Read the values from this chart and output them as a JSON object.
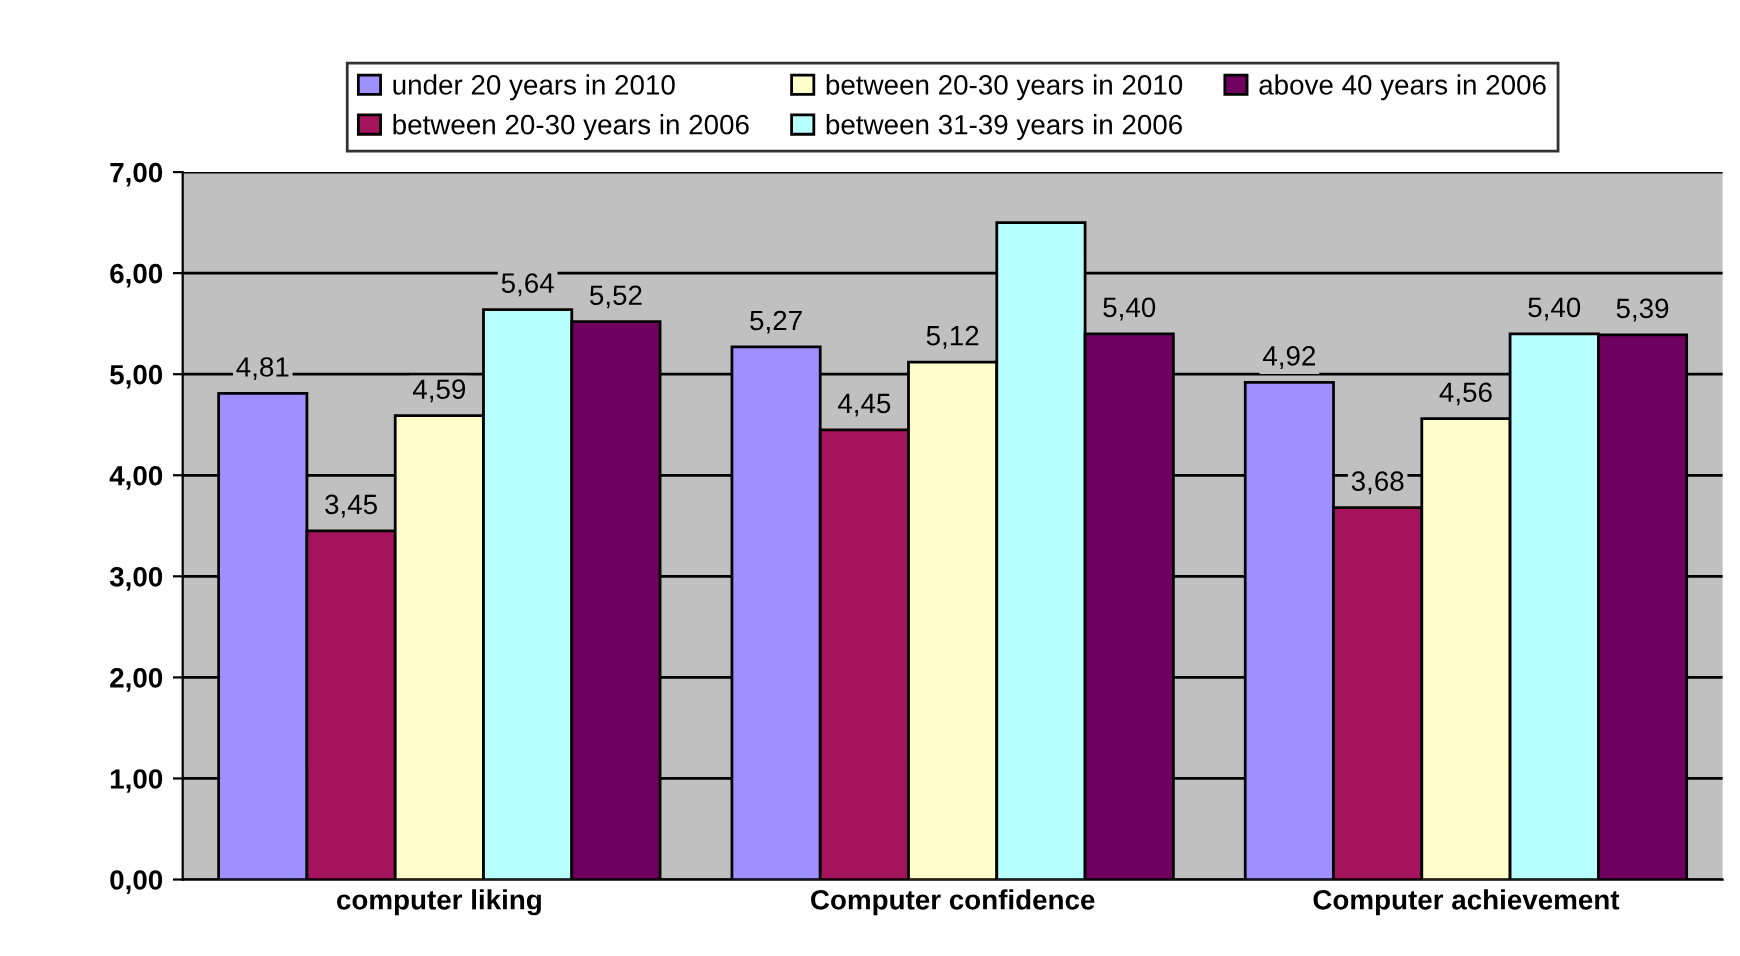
{
  "chart_data": {
    "type": "bar",
    "categories": [
      "computer liking",
      "Computer confidence",
      "Computer achievement"
    ],
    "series": [
      {
        "name": "under 20 years in 2010",
        "color": "#a090ff",
        "values": [
          4.81,
          5.27,
          4.92
        ],
        "value_labels": [
          "4,81",
          "5,27",
          "4,92"
        ]
      },
      {
        "name": "between 20-30 years in 2006",
        "color": "#a3145c",
        "values": [
          3.45,
          4.45,
          3.68
        ],
        "value_labels": [
          "3,45",
          "4,45",
          "3,68"
        ]
      },
      {
        "name": "between 20-30 years in 2010",
        "color": "#ffffcc",
        "values": [
          4.59,
          5.12,
          4.56
        ],
        "value_labels": [
          "4,59",
          "5,12",
          "4,56"
        ]
      },
      {
        "name": "between 31-39 years in 2006",
        "color": "#b8ffff",
        "values": [
          5.64,
          6.5,
          5.4
        ],
        "value_labels": [
          "5,64",
          null,
          "5,40"
        ]
      },
      {
        "name": "above 40 years in 2006",
        "color": "#700060",
        "values": [
          5.52,
          5.4,
          5.39
        ],
        "value_labels": [
          "5,52",
          "5,40",
          "5,39"
        ]
      }
    ],
    "ylim": [
      0,
      7
    ],
    "yticks": [
      {
        "value": 0,
        "label": "0,00"
      },
      {
        "value": 1,
        "label": "1,00"
      },
      {
        "value": 2,
        "label": "2,00"
      },
      {
        "value": 3,
        "label": "3,00"
      },
      {
        "value": 4,
        "label": "4,00"
      },
      {
        "value": 5,
        "label": "5,00"
      },
      {
        "value": 6,
        "label": "6,00"
      },
      {
        "value": 7,
        "label": "7,00"
      }
    ],
    "grid": "y",
    "legend": "top"
  }
}
